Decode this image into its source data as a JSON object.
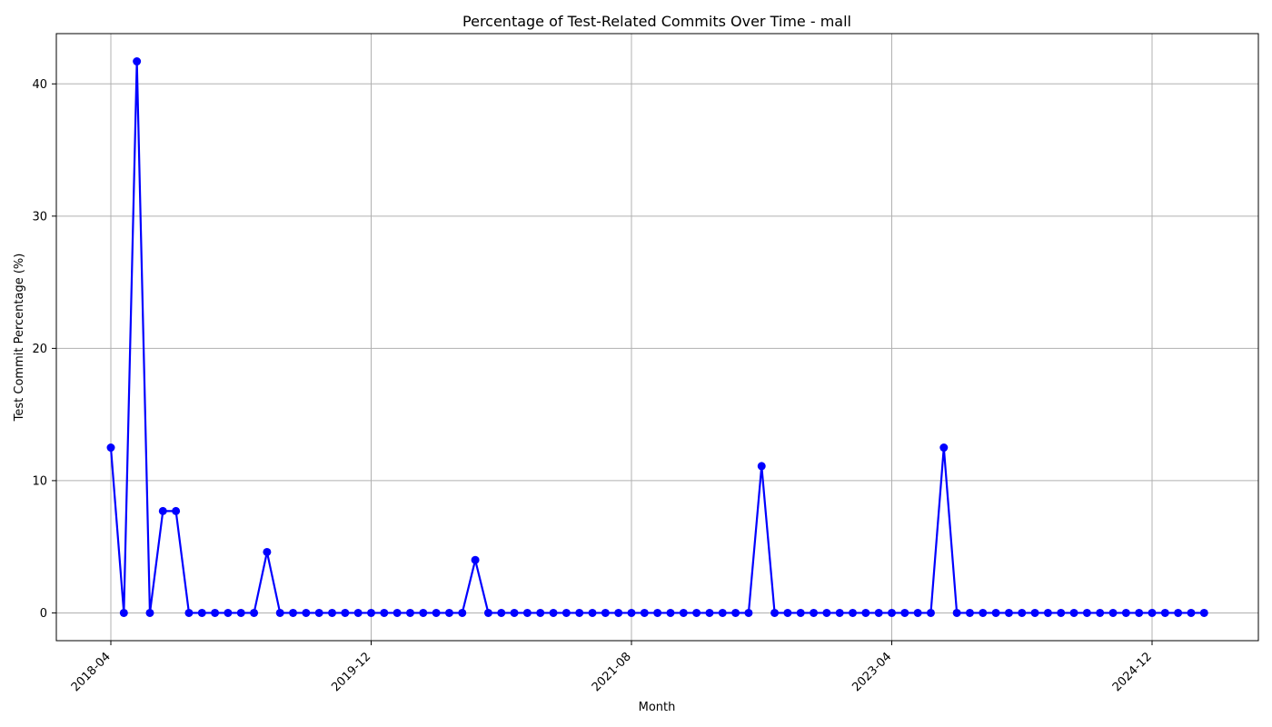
{
  "chart_data": {
    "type": "line",
    "title": "Percentage of Test-Related Commits Over Time - mall",
    "xlabel": "Month",
    "ylabel": "Test Commit Percentage (%)",
    "x_start": "2018-04",
    "x_ticks": [
      "2018-04",
      "2019-12",
      "2021-08",
      "2023-04",
      "2024-12"
    ],
    "y_ticks": [
      0,
      10,
      20,
      30,
      40
    ],
    "ylim": [
      -2.1,
      43.8
    ],
    "grid": true,
    "line_color": "#0000ff",
    "marker_color": "#0000ff",
    "series": [
      {
        "x": [
          "2018-04",
          "2018-05",
          "2018-06",
          "2018-07",
          "2018-08",
          "2018-09",
          "2018-10",
          "2018-11",
          "2018-12",
          "2019-01",
          "2019-02",
          "2019-03",
          "2019-04",
          "2019-05",
          "2019-06",
          "2019-07",
          "2019-08",
          "2019-09",
          "2019-10",
          "2019-11",
          "2019-12",
          "2020-01",
          "2020-02",
          "2020-03",
          "2020-04",
          "2020-05",
          "2020-06",
          "2020-07",
          "2020-08",
          "2020-09",
          "2020-10",
          "2020-11",
          "2020-12",
          "2021-01",
          "2021-02",
          "2021-03",
          "2021-04",
          "2021-05",
          "2021-06",
          "2021-07",
          "2021-08",
          "2021-09",
          "2021-10",
          "2021-11",
          "2021-12",
          "2022-01",
          "2022-02",
          "2022-03",
          "2022-04",
          "2022-05",
          "2022-06",
          "2022-07",
          "2022-08",
          "2022-09",
          "2022-10",
          "2022-11",
          "2022-12",
          "2023-01",
          "2023-02",
          "2023-03",
          "2023-04",
          "2023-05",
          "2023-06",
          "2023-07",
          "2023-08",
          "2023-09",
          "2023-10",
          "2023-11",
          "2023-12",
          "2024-01",
          "2024-02",
          "2024-03",
          "2024-04",
          "2024-05",
          "2024-06",
          "2024-07",
          "2024-08",
          "2024-09",
          "2024-10",
          "2024-11",
          "2024-12",
          "2025-01",
          "2025-02",
          "2025-03",
          "2025-04"
        ],
        "values": [
          12.5,
          0,
          41.7,
          0,
          7.7,
          7.7,
          0,
          0,
          0,
          0,
          0,
          0,
          4.6,
          0,
          0,
          0,
          0,
          0,
          0,
          0,
          0,
          0,
          0,
          0,
          0,
          0,
          0,
          0,
          4.0,
          0,
          0,
          0,
          0,
          0,
          0,
          0,
          0,
          0,
          0,
          0,
          0,
          0,
          0,
          0,
          0,
          0,
          0,
          0,
          0,
          0,
          11.1,
          0,
          0,
          0,
          0,
          0,
          0,
          0,
          0,
          0,
          0,
          0,
          0,
          0,
          12.5,
          0,
          0,
          0,
          0,
          0,
          0,
          0,
          0,
          0,
          0,
          0,
          0,
          0,
          0,
          0,
          0,
          0,
          0,
          0,
          0
        ]
      }
    ]
  }
}
